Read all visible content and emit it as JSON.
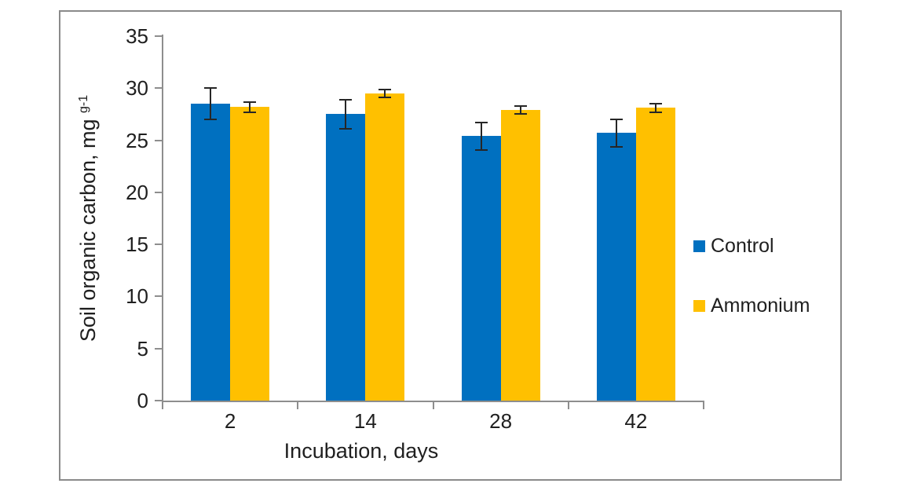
{
  "chart_data": {
    "type": "bar",
    "title": "",
    "xlabel": "Incubation, days",
    "ylabel_main": "Soil organic carbon, mg ",
    "ylabel_sup": "g-1",
    "categories": [
      "2",
      "14",
      "28",
      "42"
    ],
    "series": [
      {
        "name": "Control",
        "color": "#0070C0",
        "values": [
          28.5,
          27.5,
          25.4,
          25.7
        ],
        "errors": [
          1.5,
          1.4,
          1.3,
          1.3
        ]
      },
      {
        "name": "Ammonium",
        "color": "#FFC000",
        "values": [
          28.2,
          29.5,
          27.9,
          28.1
        ],
        "errors": [
          0.5,
          0.4,
          0.4,
          0.4
        ]
      }
    ],
    "ylim": [
      0,
      35
    ],
    "ytick_step": 5,
    "yticks": [
      0,
      5,
      10,
      15,
      20,
      25,
      30,
      35
    ],
    "grid": false,
    "legend_position": "right",
    "error_bar_color": "#262626",
    "axis_color": "#8e8e8e",
    "tick_label_color": "#1f1f1f"
  }
}
